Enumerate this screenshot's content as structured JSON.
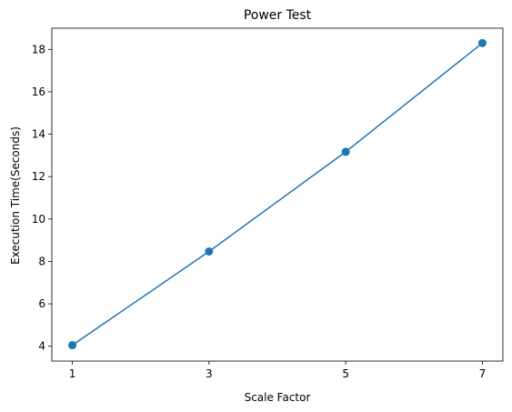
{
  "chart_data": {
    "type": "line",
    "title": "Power Test",
    "xlabel": "Scale Factor",
    "ylabel": "Execution Time(Seconds)",
    "x": [
      1,
      3,
      5,
      7
    ],
    "xticks": [
      1,
      3,
      5,
      7
    ],
    "xtick_labels": [
      "1",
      "3",
      "5",
      "7"
    ],
    "yticks": [
      4,
      6,
      8,
      10,
      12,
      14,
      16,
      18
    ],
    "ytick_labels": [
      "4",
      "6",
      "8",
      "10",
      "12",
      "14",
      "16",
      "18"
    ],
    "xlim": [
      0.7,
      7.3
    ],
    "ylim": [
      3.3,
      19.0
    ],
    "series": [
      {
        "values": [
          4.05,
          8.47,
          13.17,
          18.3
        ],
        "color": "#1f77b4",
        "marker": "circle"
      }
    ],
    "grid": false,
    "legend": "none"
  }
}
